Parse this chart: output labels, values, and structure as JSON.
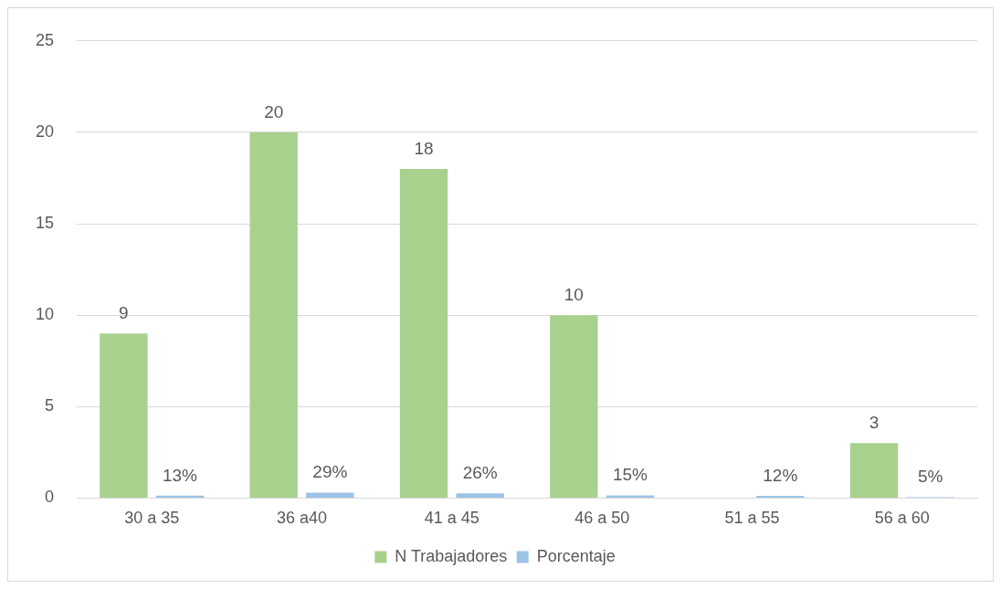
{
  "chart_data": {
    "type": "bar",
    "categories": [
      "30 a 35",
      "36 a40",
      "41 a 45",
      "46 a 50",
      "51 a 55",
      "56 a 60"
    ],
    "series": [
      {
        "name": "N Trabajadores",
        "color": "#a9d18e",
        "values": [
          9,
          20,
          18,
          10,
          null,
          3
        ],
        "value_labels": [
          "9",
          "20",
          "18",
          "10",
          null,
          "3"
        ]
      },
      {
        "name": "Porcentaje",
        "color": "#9dc3e6",
        "values": [
          0.13,
          0.29,
          0.26,
          0.15,
          0.12,
          0.05
        ],
        "value_labels": [
          "13%",
          "29%",
          "26%",
          "15%",
          "12%",
          "5%"
        ]
      }
    ],
    "ylim": [
      0,
      25
    ],
    "yticks": [
      0,
      5,
      10,
      15,
      20,
      25
    ],
    "grid": "y",
    "legend": "bottom"
  }
}
